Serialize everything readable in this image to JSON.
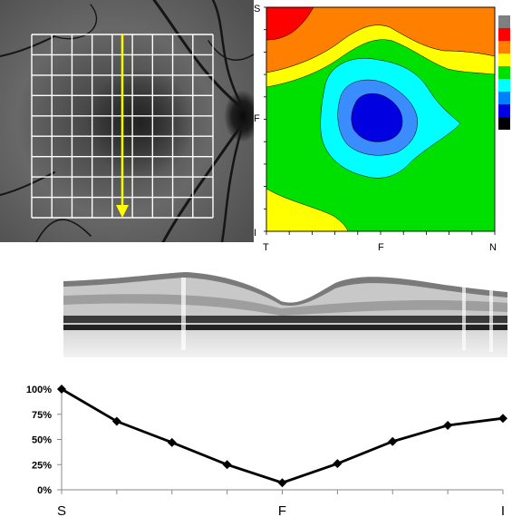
{
  "fundus": {
    "grid_cols": 9,
    "grid_rows": 9,
    "arrow_color": "#ffff00",
    "grid_color": "#ffffff"
  },
  "contour_map": {
    "axis_left": [
      "S",
      "F",
      "I"
    ],
    "axis_bottom": [
      "T",
      "F",
      "N"
    ],
    "colorbar": [
      "#7f7f7f",
      "#ff0000",
      "#ff7f00",
      "#ffff00",
      "#00e000",
      "#00ffff",
      "#0080ff",
      "#0000e0",
      "#000000"
    ],
    "level_colors": [
      "#ff0000",
      "#ff7f00",
      "#ffff00",
      "#00e000",
      "#00ffff",
      "#3a8cff",
      "#0000e0"
    ]
  },
  "chart_data": {
    "type": "line",
    "x": [
      "S",
      "",
      "",
      "",
      "F",
      "",
      "",
      "",
      "I"
    ],
    "x_tick_labels": [
      "S",
      "F",
      "I"
    ],
    "values": [
      100,
      68,
      47,
      25,
      7,
      26,
      48,
      64,
      71
    ],
    "y_ticks": [
      "0%",
      "25%",
      "50%",
      "75%",
      "100%"
    ],
    "ylim": [
      0,
      100
    ],
    "grid": false,
    "marker": "diamond",
    "color": "#000000"
  }
}
